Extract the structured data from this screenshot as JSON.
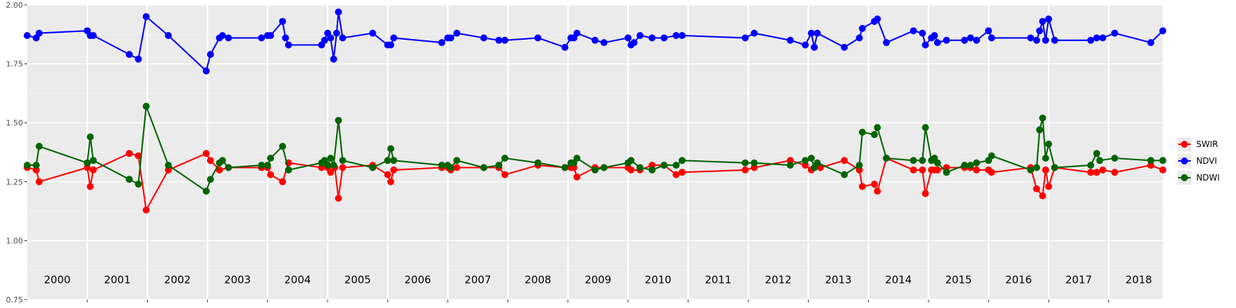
{
  "chart_data": {
    "type": "line",
    "title": "",
    "xlabel": "",
    "ylabel": "",
    "ylim": [
      0.75,
      2.0
    ],
    "yticks": [
      "0.75",
      "1.00",
      "1.25",
      "1.50",
      "1.75",
      "2.00"
    ],
    "xlim": [
      2000.0,
      2018.9
    ],
    "year_labels": [
      "2000",
      "2001",
      "2002",
      "2003",
      "2004",
      "2005",
      "2006",
      "2007",
      "2008",
      "2009",
      "2010",
      "2011",
      "2012",
      "2013",
      "2014",
      "2015",
      "2016",
      "2017",
      "2018"
    ],
    "grid": true,
    "legend_position": "right",
    "series": [
      {
        "name": "SWIR",
        "color": "#ff0000",
        "points": [
          [
            2000.0,
            1.31
          ],
          [
            2000.15,
            1.3
          ],
          [
            2000.2,
            1.25
          ],
          [
            2001.0,
            1.31
          ],
          [
            2001.05,
            1.23
          ],
          [
            2001.1,
            1.3
          ],
          [
            2001.7,
            1.37
          ],
          [
            2001.85,
            1.36
          ],
          [
            2001.98,
            1.13
          ],
          [
            2002.35,
            1.3
          ],
          [
            2002.98,
            1.37
          ],
          [
            2003.05,
            1.34
          ],
          [
            2003.2,
            1.3
          ],
          [
            2003.35,
            1.31
          ],
          [
            2003.9,
            1.31
          ],
          [
            2004.0,
            1.31
          ],
          [
            2004.05,
            1.28
          ],
          [
            2004.25,
            1.25
          ],
          [
            2004.35,
            1.33
          ],
          [
            2004.9,
            1.31
          ],
          [
            2005.0,
            1.31
          ],
          [
            2005.05,
            1.29
          ],
          [
            2005.12,
            1.31
          ],
          [
            2005.18,
            1.18
          ],
          [
            2005.25,
            1.31
          ],
          [
            2005.75,
            1.32
          ],
          [
            2006.0,
            1.28
          ],
          [
            2006.05,
            1.25
          ],
          [
            2006.1,
            1.3
          ],
          [
            2006.9,
            1.31
          ],
          [
            2007.0,
            1.31
          ],
          [
            2007.05,
            1.3
          ],
          [
            2007.15,
            1.31
          ],
          [
            2007.6,
            1.31
          ],
          [
            2007.85,
            1.31
          ],
          [
            2007.95,
            1.28
          ],
          [
            2008.5,
            1.32
          ],
          [
            2008.95,
            1.31
          ],
          [
            2009.05,
            1.31
          ],
          [
            2009.1,
            1.31
          ],
          [
            2009.15,
            1.27
          ],
          [
            2009.45,
            1.31
          ],
          [
            2009.6,
            1.31
          ],
          [
            2010.0,
            1.31
          ],
          [
            2010.05,
            1.3
          ],
          [
            2010.2,
            1.3
          ],
          [
            2010.4,
            1.32
          ],
          [
            2010.6,
            1.32
          ],
          [
            2010.8,
            1.28
          ],
          [
            2010.9,
            1.29
          ],
          [
            2011.95,
            1.3
          ],
          [
            2012.1,
            1.31
          ],
          [
            2012.7,
            1.34
          ],
          [
            2012.95,
            1.32
          ],
          [
            2013.05,
            1.3
          ],
          [
            2013.2,
            1.31
          ],
          [
            2013.6,
            1.34
          ],
          [
            2013.85,
            1.3
          ],
          [
            2013.9,
            1.23
          ],
          [
            2014.1,
            1.24
          ],
          [
            2014.15,
            1.21
          ],
          [
            2014.3,
            1.35
          ],
          [
            2014.75,
            1.3
          ],
          [
            2014.9,
            1.3
          ],
          [
            2014.95,
            1.2
          ],
          [
            2015.05,
            1.3
          ],
          [
            2015.1,
            1.3
          ],
          [
            2015.15,
            1.3
          ],
          [
            2015.3,
            1.31
          ],
          [
            2015.6,
            1.31
          ],
          [
            2015.7,
            1.31
          ],
          [
            2015.8,
            1.3
          ],
          [
            2016.0,
            1.3
          ],
          [
            2016.05,
            1.29
          ],
          [
            2016.7,
            1.31
          ],
          [
            2016.8,
            1.22
          ],
          [
            2016.9,
            1.19
          ],
          [
            2016.95,
            1.3
          ],
          [
            2017.0,
            1.23
          ],
          [
            2017.1,
            1.31
          ],
          [
            2017.7,
            1.29
          ],
          [
            2017.8,
            1.29
          ],
          [
            2017.9,
            1.3
          ],
          [
            2018.1,
            1.29
          ],
          [
            2018.7,
            1.32
          ],
          [
            2018.9,
            1.3
          ]
        ]
      },
      {
        "name": "NDVI",
        "color": "#0000ff",
        "points": [
          [
            2000.0,
            1.87
          ],
          [
            2000.15,
            1.86
          ],
          [
            2000.2,
            1.88
          ],
          [
            2001.0,
            1.89
          ],
          [
            2001.05,
            1.87
          ],
          [
            2001.1,
            1.87
          ],
          [
            2001.7,
            1.79
          ],
          [
            2001.85,
            1.77
          ],
          [
            2001.98,
            1.95
          ],
          [
            2002.35,
            1.87
          ],
          [
            2002.98,
            1.72
          ],
          [
            2003.05,
            1.79
          ],
          [
            2003.2,
            1.86
          ],
          [
            2003.25,
            1.87
          ],
          [
            2003.35,
            1.86
          ],
          [
            2003.9,
            1.86
          ],
          [
            2004.0,
            1.87
          ],
          [
            2004.05,
            1.87
          ],
          [
            2004.25,
            1.93
          ],
          [
            2004.3,
            1.86
          ],
          [
            2004.35,
            1.83
          ],
          [
            2004.9,
            1.83
          ],
          [
            2004.95,
            1.85
          ],
          [
            2005.0,
            1.88
          ],
          [
            2005.05,
            1.86
          ],
          [
            2005.1,
            1.77
          ],
          [
            2005.15,
            1.88
          ],
          [
            2005.18,
            1.97
          ],
          [
            2005.25,
            1.86
          ],
          [
            2005.75,
            1.88
          ],
          [
            2006.0,
            1.83
          ],
          [
            2006.05,
            1.83
          ],
          [
            2006.1,
            1.86
          ],
          [
            2006.9,
            1.84
          ],
          [
            2007.0,
            1.86
          ],
          [
            2007.05,
            1.86
          ],
          [
            2007.15,
            1.88
          ],
          [
            2007.6,
            1.86
          ],
          [
            2007.85,
            1.85
          ],
          [
            2007.95,
            1.85
          ],
          [
            2008.5,
            1.86
          ],
          [
            2008.95,
            1.82
          ],
          [
            2009.05,
            1.86
          ],
          [
            2009.1,
            1.86
          ],
          [
            2009.15,
            1.88
          ],
          [
            2009.45,
            1.85
          ],
          [
            2009.6,
            1.84
          ],
          [
            2010.0,
            1.86
          ],
          [
            2010.05,
            1.83
          ],
          [
            2010.1,
            1.84
          ],
          [
            2010.2,
            1.87
          ],
          [
            2010.4,
            1.86
          ],
          [
            2010.6,
            1.86
          ],
          [
            2010.8,
            1.87
          ],
          [
            2010.9,
            1.87
          ],
          [
            2011.95,
            1.86
          ],
          [
            2012.1,
            1.88
          ],
          [
            2012.7,
            1.85
          ],
          [
            2012.95,
            1.83
          ],
          [
            2013.05,
            1.88
          ],
          [
            2013.1,
            1.82
          ],
          [
            2013.15,
            1.88
          ],
          [
            2013.6,
            1.82
          ],
          [
            2013.85,
            1.86
          ],
          [
            2013.9,
            1.9
          ],
          [
            2014.1,
            1.93
          ],
          [
            2014.15,
            1.94
          ],
          [
            2014.3,
            1.84
          ],
          [
            2014.75,
            1.89
          ],
          [
            2014.9,
            1.88
          ],
          [
            2014.95,
            1.83
          ],
          [
            2015.05,
            1.86
          ],
          [
            2015.1,
            1.87
          ],
          [
            2015.15,
            1.84
          ],
          [
            2015.3,
            1.85
          ],
          [
            2015.6,
            1.85
          ],
          [
            2015.7,
            1.86
          ],
          [
            2015.8,
            1.85
          ],
          [
            2016.0,
            1.89
          ],
          [
            2016.05,
            1.86
          ],
          [
            2016.7,
            1.86
          ],
          [
            2016.8,
            1.85
          ],
          [
            2016.85,
            1.89
          ],
          [
            2016.9,
            1.93
          ],
          [
            2016.95,
            1.85
          ],
          [
            2017.0,
            1.94
          ],
          [
            2017.1,
            1.85
          ],
          [
            2017.7,
            1.85
          ],
          [
            2017.8,
            1.86
          ],
          [
            2017.9,
            1.86
          ],
          [
            2018.1,
            1.88
          ],
          [
            2018.7,
            1.84
          ],
          [
            2018.9,
            1.89
          ]
        ]
      },
      {
        "name": "NDWI",
        "color": "#006400",
        "points": [
          [
            2000.0,
            1.32
          ],
          [
            2000.15,
            1.32
          ],
          [
            2000.2,
            1.4
          ],
          [
            2001.0,
            1.33
          ],
          [
            2001.05,
            1.44
          ],
          [
            2001.1,
            1.34
          ],
          [
            2001.7,
            1.26
          ],
          [
            2001.85,
            1.24
          ],
          [
            2001.98,
            1.57
          ],
          [
            2002.35,
            1.32
          ],
          [
            2002.98,
            1.21
          ],
          [
            2003.05,
            1.26
          ],
          [
            2003.2,
            1.33
          ],
          [
            2003.25,
            1.34
          ],
          [
            2003.35,
            1.31
          ],
          [
            2003.9,
            1.32
          ],
          [
            2004.0,
            1.32
          ],
          [
            2004.05,
            1.35
          ],
          [
            2004.25,
            1.4
          ],
          [
            2004.35,
            1.3
          ],
          [
            2004.9,
            1.33
          ],
          [
            2004.95,
            1.34
          ],
          [
            2005.0,
            1.32
          ],
          [
            2005.05,
            1.35
          ],
          [
            2005.1,
            1.32
          ],
          [
            2005.18,
            1.51
          ],
          [
            2005.25,
            1.34
          ],
          [
            2005.75,
            1.31
          ],
          [
            2006.0,
            1.34
          ],
          [
            2006.05,
            1.39
          ],
          [
            2006.1,
            1.34
          ],
          [
            2006.9,
            1.32
          ],
          [
            2007.0,
            1.32
          ],
          [
            2007.05,
            1.31
          ],
          [
            2007.15,
            1.34
          ],
          [
            2007.6,
            1.31
          ],
          [
            2007.85,
            1.32
          ],
          [
            2007.95,
            1.35
          ],
          [
            2008.5,
            1.33
          ],
          [
            2008.95,
            1.31
          ],
          [
            2009.05,
            1.33
          ],
          [
            2009.1,
            1.33
          ],
          [
            2009.15,
            1.35
          ],
          [
            2009.45,
            1.3
          ],
          [
            2009.6,
            1.31
          ],
          [
            2010.0,
            1.33
          ],
          [
            2010.05,
            1.34
          ],
          [
            2010.2,
            1.31
          ],
          [
            2010.4,
            1.3
          ],
          [
            2010.6,
            1.32
          ],
          [
            2010.8,
            1.32
          ],
          [
            2010.9,
            1.34
          ],
          [
            2011.95,
            1.33
          ],
          [
            2012.1,
            1.33
          ],
          [
            2012.7,
            1.32
          ],
          [
            2012.95,
            1.34
          ],
          [
            2013.05,
            1.35
          ],
          [
            2013.1,
            1.31
          ],
          [
            2013.15,
            1.33
          ],
          [
            2013.6,
            1.28
          ],
          [
            2013.85,
            1.32
          ],
          [
            2013.9,
            1.46
          ],
          [
            2014.1,
            1.45
          ],
          [
            2014.15,
            1.48
          ],
          [
            2014.3,
            1.35
          ],
          [
            2014.75,
            1.34
          ],
          [
            2014.9,
            1.34
          ],
          [
            2014.95,
            1.48
          ],
          [
            2015.05,
            1.34
          ],
          [
            2015.1,
            1.35
          ],
          [
            2015.15,
            1.33
          ],
          [
            2015.3,
            1.29
          ],
          [
            2015.6,
            1.32
          ],
          [
            2015.7,
            1.32
          ],
          [
            2015.8,
            1.33
          ],
          [
            2016.0,
            1.34
          ],
          [
            2016.05,
            1.36
          ],
          [
            2016.7,
            1.3
          ],
          [
            2016.8,
            1.31
          ],
          [
            2016.85,
            1.47
          ],
          [
            2016.9,
            1.52
          ],
          [
            2016.95,
            1.35
          ],
          [
            2017.0,
            1.41
          ],
          [
            2017.1,
            1.31
          ],
          [
            2017.7,
            1.32
          ],
          [
            2017.8,
            1.37
          ],
          [
            2017.85,
            1.34
          ],
          [
            2018.1,
            1.35
          ],
          [
            2018.7,
            1.34
          ],
          [
            2018.9,
            1.34
          ]
        ]
      }
    ],
    "legend": [
      "SWIR",
      "NDVI",
      "NDWI"
    ]
  }
}
